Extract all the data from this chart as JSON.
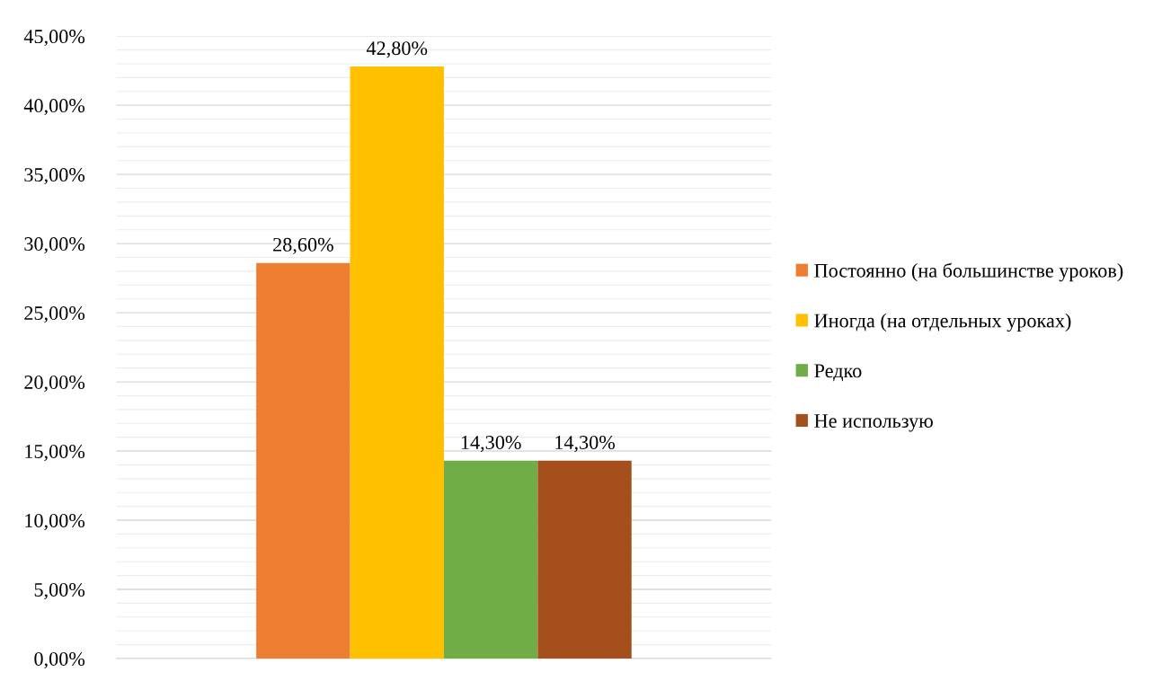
{
  "chart_data": {
    "type": "bar",
    "categories": [
      null
    ],
    "series": [
      {
        "name": "Постоянно (на большинстве уроков)",
        "color": "#ed7d31",
        "values": [
          28.6
        ],
        "value_labels": [
          "28,60%"
        ]
      },
      {
        "name": "Иногда (на отдельных уроках)",
        "color": "#ffc000",
        "values": [
          42.8
        ],
        "value_labels": [
          "42,80%"
        ]
      },
      {
        "name": "Редко",
        "color": "#70ad47",
        "values": [
          14.3
        ],
        "value_labels": [
          "14,30%"
        ]
      },
      {
        "name": "Не использую",
        "color": "#a5501c",
        "values": [
          14.3
        ],
        "value_labels": [
          "14,30%"
        ]
      }
    ],
    "ylim": [
      0,
      45
    ],
    "yticks": [
      {
        "value": 0,
        "label": "0,00%"
      },
      {
        "value": 5,
        "label": "5,00%"
      },
      {
        "value": 10,
        "label": "10,00%"
      },
      {
        "value": 15,
        "label": "15,00%"
      },
      {
        "value": 20,
        "label": "20,00%"
      },
      {
        "value": 25,
        "label": "25,00%"
      },
      {
        "value": 30,
        "label": "30,00%"
      },
      {
        "value": 35,
        "label": "35,00%"
      },
      {
        "value": 40,
        "label": "40,00%"
      },
      {
        "value": 45,
        "label": "45,00%"
      }
    ],
    "grid": "y",
    "legend": "right"
  }
}
